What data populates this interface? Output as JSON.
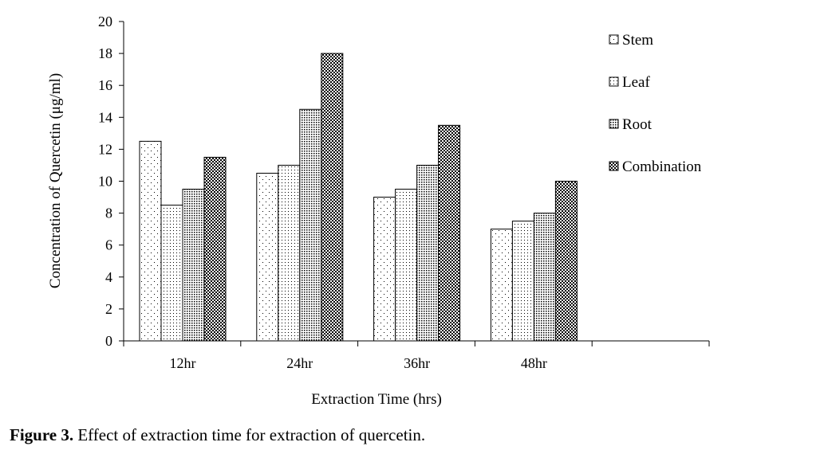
{
  "chart_data": {
    "type": "bar",
    "categories": [
      "12hr",
      "24hr",
      "36hr",
      "48hr",
      ""
    ],
    "series": [
      {
        "name": "Stem",
        "values": [
          12.5,
          10.5,
          9,
          7,
          null
        ],
        "pattern": "sparse-dots"
      },
      {
        "name": "Leaf",
        "values": [
          8.5,
          11,
          9.5,
          7.5,
          null
        ],
        "pattern": "dots"
      },
      {
        "name": "Root",
        "values": [
          9.5,
          14.5,
          11,
          8,
          null
        ],
        "pattern": "dense-dots"
      },
      {
        "name": "Combination",
        "values": [
          11.5,
          18,
          13.5,
          10,
          null
        ],
        "pattern": "crosshatch"
      }
    ],
    "title": "",
    "xlabel": "Extraction Time (hrs)",
    "ylabel": "Concentration of Quercetin (μg/ml)",
    "ylim": [
      0,
      20
    ],
    "yticks": [
      0,
      2,
      4,
      6,
      8,
      10,
      12,
      14,
      16,
      18,
      20
    ],
    "grid": false,
    "legend": "right"
  },
  "caption": {
    "label": "Figure 3.",
    "text": " Effect of extraction time for extraction of quercetin."
  }
}
